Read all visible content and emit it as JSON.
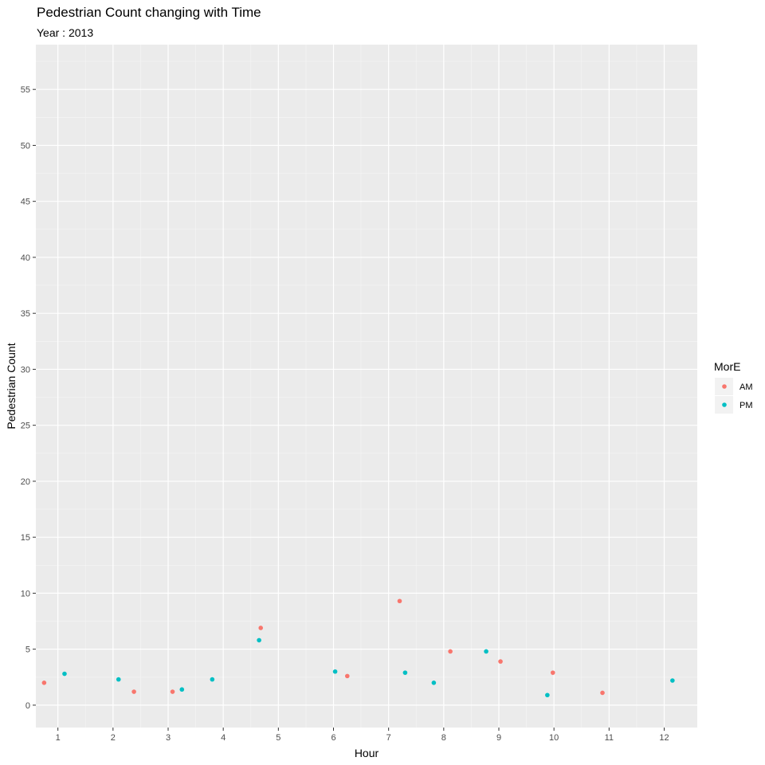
{
  "chart_data": {
    "type": "scatter",
    "title": "Pedestrian Count changing with Time",
    "subtitle": "Year : 2013",
    "xlabel": "Hour",
    "ylabel": "Pedestrian Count",
    "xlim": [
      0.6,
      12.6
    ],
    "ylim": [
      -2,
      59
    ],
    "x_ticks": [
      1,
      2,
      3,
      4,
      5,
      6,
      7,
      8,
      9,
      10,
      11,
      12
    ],
    "y_ticks": [
      0,
      5,
      10,
      15,
      20,
      25,
      30,
      35,
      40,
      45,
      50,
      55
    ],
    "grid": true,
    "legend": {
      "title": "MorE",
      "position": "right"
    },
    "series": [
      {
        "name": "AM",
        "color": "#F8766D",
        "points": [
          {
            "x": 0.75,
            "y": 2.0
          },
          {
            "x": 2.38,
            "y": 1.2
          },
          {
            "x": 3.08,
            "y": 1.2
          },
          {
            "x": 4.68,
            "y": 6.9
          },
          {
            "x": 6.25,
            "y": 2.6
          },
          {
            "x": 7.2,
            "y": 9.3
          },
          {
            "x": 8.12,
            "y": 4.8
          },
          {
            "x": 9.03,
            "y": 3.9
          },
          {
            "x": 9.98,
            "y": 2.9
          },
          {
            "x": 10.88,
            "y": 1.1
          }
        ]
      },
      {
        "name": "PM",
        "color": "#00BFC4",
        "points": [
          {
            "x": 1.12,
            "y": 2.8
          },
          {
            "x": 2.1,
            "y": 2.3
          },
          {
            "x": 3.25,
            "y": 1.4
          },
          {
            "x": 3.8,
            "y": 2.3
          },
          {
            "x": 4.65,
            "y": 5.8
          },
          {
            "x": 6.03,
            "y": 3.0
          },
          {
            "x": 7.3,
            "y": 2.9
          },
          {
            "x": 7.82,
            "y": 2.0
          },
          {
            "x": 8.77,
            "y": 4.8
          },
          {
            "x": 9.88,
            "y": 0.9
          },
          {
            "x": 12.15,
            "y": 2.2
          }
        ]
      }
    ]
  }
}
